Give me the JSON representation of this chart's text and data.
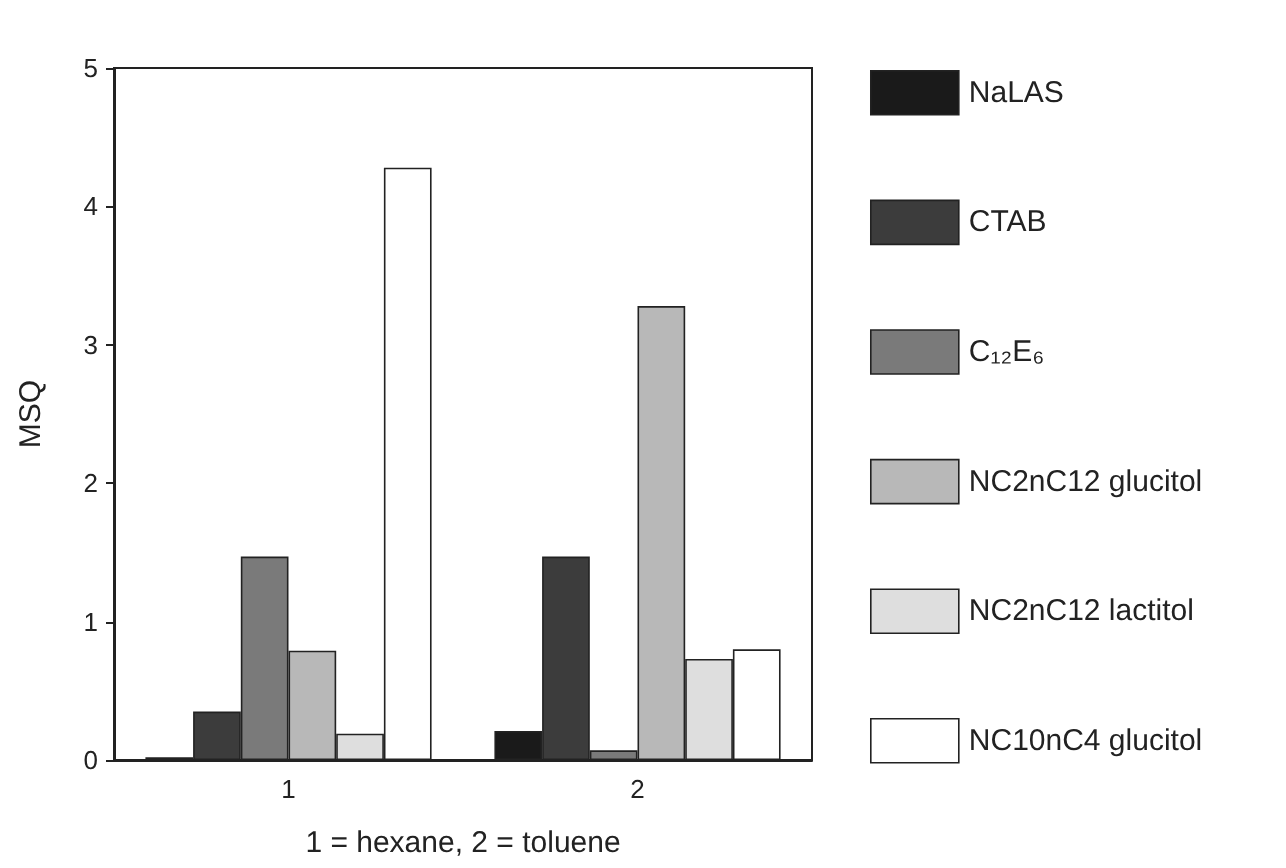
{
  "chart_data": {
    "type": "bar",
    "categories": [
      "1",
      "2"
    ],
    "xlabel": "1 = hexane, 2 = toluene",
    "ylabel": "MSQ",
    "ylim": [
      0,
      5
    ],
    "yticks": [
      0,
      1,
      2,
      3,
      4,
      5
    ],
    "grid": false,
    "legend": "right",
    "series": [
      {
        "name": "NaLAS",
        "color": "#1a1a1a",
        "values": [
          0.02,
          0.21
        ]
      },
      {
        "name": "CTAB",
        "color": "#3c3c3c",
        "values": [
          0.35,
          1.47
        ]
      },
      {
        "name": "C₁₂E₆",
        "color": "#7a7a7a",
        "values": [
          1.47,
          0.07
        ]
      },
      {
        "name": "NC2nC12 glucitol",
        "color": "#b8b8b8",
        "values": [
          0.79,
          3.28
        ]
      },
      {
        "name": "NC2nC12 lactitol",
        "color": "#dedede",
        "values": [
          0.19,
          0.73
        ]
      },
      {
        "name": "NC10nC4 glucitol",
        "color": "#ffffff",
        "values": [
          4.28,
          0.8
        ]
      }
    ]
  }
}
